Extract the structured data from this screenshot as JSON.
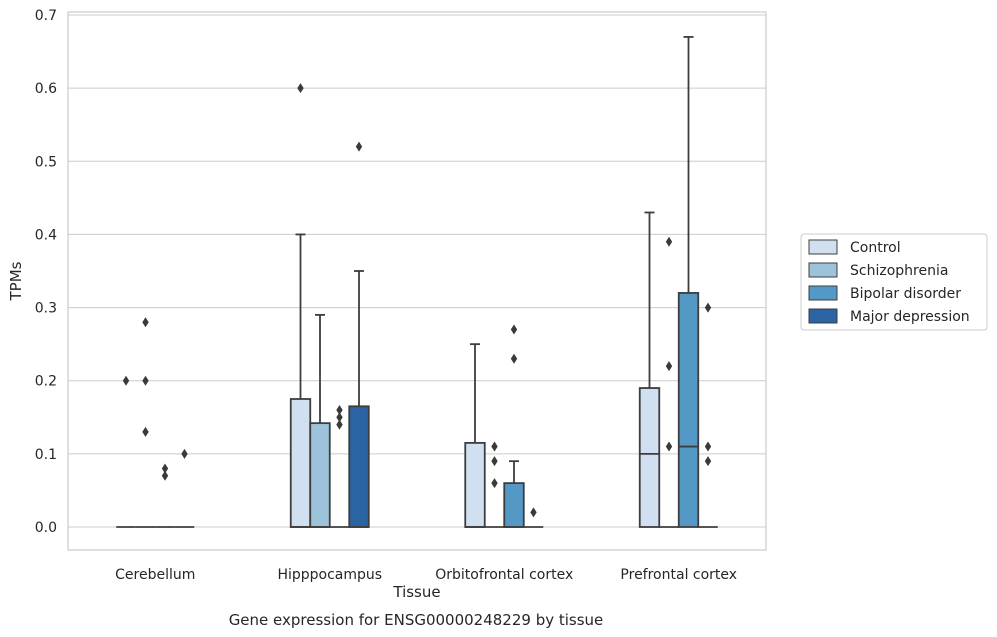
{
  "chart_data": {
    "type": "box",
    "caption": "Gene expression for ENSG00000248229 by tissue",
    "xlabel": "Tissue",
    "ylabel": "TPMs",
    "ylim": [
      -0.03,
      0.705
    ],
    "yticks": [
      "0.0",
      "0.1",
      "0.2",
      "0.3",
      "0.4",
      "0.5",
      "0.6",
      "0.7"
    ],
    "grid": "horizontal",
    "legend_position": "right",
    "categories": [
      "Cerebellum",
      "Hipppocampus",
      "Orbitofrontal cortex",
      "Prefrontal cortex"
    ],
    "series": [
      {
        "name": "Control",
        "color": "#d0e0f0",
        "boxes": [
          {
            "q1": 0,
            "median": 0,
            "q3": 0,
            "whislo": 0,
            "whishi": 0,
            "fliers": [
              0.2
            ]
          },
          {
            "q1": 0,
            "median": 0,
            "q3": 0.175,
            "whislo": 0,
            "whishi": 0.4,
            "fliers": [
              0.6
            ]
          },
          {
            "q1": 0,
            "median": 0,
            "q3": 0.115,
            "whislo": 0,
            "whishi": 0.25,
            "fliers": []
          },
          {
            "q1": 0,
            "median": 0.1,
            "q3": 0.19,
            "whislo": 0,
            "whishi": 0.43,
            "fliers": []
          }
        ]
      },
      {
        "name": "Schizophrenia",
        "color": "#9cc3da",
        "boxes": [
          {
            "q1": 0,
            "median": 0,
            "q3": 0,
            "whislo": 0,
            "whishi": 0,
            "fliers": [
              0.28,
              0.2,
              0.13
            ]
          },
          {
            "q1": 0,
            "median": 0,
            "q3": 0.142,
            "whislo": 0,
            "whishi": 0.29,
            "fliers": []
          },
          {
            "q1": 0,
            "median": 0,
            "q3": 0,
            "whislo": 0,
            "whishi": 0,
            "fliers": [
              0.11,
              0.09,
              0.06
            ]
          },
          {
            "q1": 0,
            "median": 0,
            "q3": 0,
            "whislo": 0,
            "whishi": 0,
            "fliers": [
              0.39,
              0.22,
              0.11
            ]
          }
        ]
      },
      {
        "name": "Bipolar disorder",
        "color": "#5498c6",
        "boxes": [
          {
            "q1": 0,
            "median": 0,
            "q3": 0,
            "whislo": 0,
            "whishi": 0,
            "fliers": [
              0.08,
              0.07
            ]
          },
          {
            "q1": 0,
            "median": 0,
            "q3": 0,
            "whislo": 0,
            "whishi": 0,
            "fliers": [
              0.16,
              0.15,
              0.14
            ]
          },
          {
            "q1": 0,
            "median": 0,
            "q3": 0.06,
            "whislo": 0,
            "whishi": 0.09,
            "fliers": [
              0.27,
              0.23
            ]
          },
          {
            "q1": 0,
            "median": 0.11,
            "q3": 0.32,
            "whislo": 0,
            "whishi": 0.67,
            "fliers": []
          }
        ]
      },
      {
        "name": "Major depression",
        "color": "#2b64a2",
        "boxes": [
          {
            "q1": 0,
            "median": 0,
            "q3": 0,
            "whislo": 0,
            "whishi": 0,
            "fliers": [
              0.1
            ]
          },
          {
            "q1": 0,
            "median": 0,
            "q3": 0.165,
            "whislo": 0,
            "whishi": 0.35,
            "fliers": [
              0.52
            ]
          },
          {
            "q1": 0,
            "median": 0,
            "q3": 0,
            "whislo": 0,
            "whishi": 0,
            "fliers": [
              0.02
            ]
          },
          {
            "q1": 0,
            "median": 0,
            "q3": 0,
            "whislo": 0,
            "whishi": 0,
            "fliers": [
              0.3,
              0.11,
              0.09
            ]
          }
        ]
      }
    ]
  }
}
